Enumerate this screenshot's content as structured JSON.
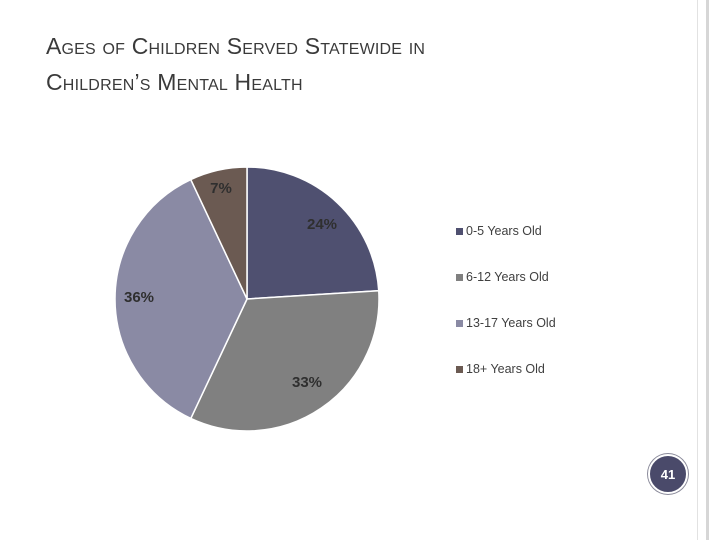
{
  "slide": {
    "title_lines": [
      "Ages of Children Served Statewide in",
      "Children’s Mental Health"
    ],
    "page_number": "41"
  },
  "colors": {
    "slice_0_5": "#4f5070",
    "slice_6_12": "#808080",
    "slice_13_17": "#8a8aa4",
    "slice_18_plus": "#6b5a52",
    "rail": "#d6d6d6"
  },
  "chart_data": {
    "type": "pie",
    "title": "",
    "categories": [
      "0-5 Years Old",
      "6-12 Years Old",
      "13-17 Years Old",
      "18+ Years Old"
    ],
    "values": [
      24,
      33,
      36,
      7
    ],
    "data_labels": [
      "24%",
      "33%",
      "36%",
      "7%"
    ],
    "legend": "right",
    "start_angle": "12 o'clock",
    "direction": "clockwise"
  }
}
